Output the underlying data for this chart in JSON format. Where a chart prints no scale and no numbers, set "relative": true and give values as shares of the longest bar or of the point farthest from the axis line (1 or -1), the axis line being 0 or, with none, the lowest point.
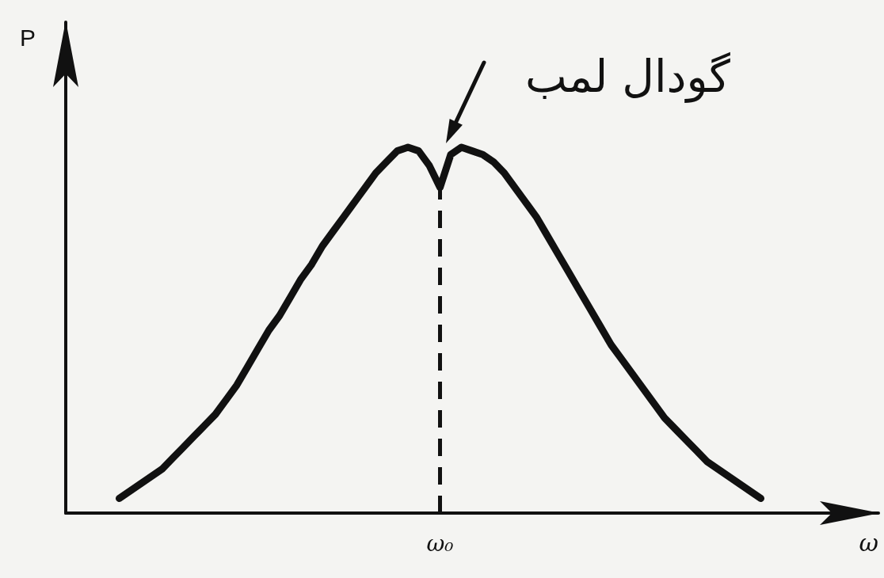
{
  "chart_data": {
    "type": "line",
    "relative": true,
    "xlabel": "ω",
    "ylabel": "P",
    "marker": "none",
    "grid": false,
    "color": "#111111",
    "categories": [
      null,
      null,
      null,
      null,
      null,
      null,
      null,
      null,
      null,
      null,
      null,
      null,
      null,
      null,
      null,
      null,
      null,
      null,
      null,
      null,
      null,
      null,
      null,
      null,
      null,
      null,
      null,
      null,
      null,
      null,
      null,
      null,
      null,
      null,
      null,
      null,
      null,
      null,
      null,
      null,
      null,
      null,
      null,
      null,
      null,
      null,
      null,
      null,
      null,
      null,
      null,
      null,
      null,
      null,
      null,
      null,
      null,
      null,
      null,
      null,
      null,
      null,
      null,
      null,
      null,
      null,
      null,
      null,
      null,
      null,
      null,
      null,
      null,
      null,
      null,
      null,
      null
    ],
    "values": [
      null,
      null,
      null,
      null,
      null,
      0.04,
      0.06,
      0.08,
      0.1,
      0.12,
      0.15,
      0.18,
      0.21,
      0.24,
      0.27,
      0.31,
      0.35,
      0.4,
      0.45,
      0.5,
      0.54,
      0.59,
      0.64,
      0.68,
      0.73,
      0.77,
      0.81,
      0.85,
      0.89,
      0.93,
      0.96,
      0.99,
      1,
      0.99,
      0.95,
      0.89,
      0.98,
      1,
      0.99,
      0.98,
      0.96,
      0.93,
      0.89,
      0.85,
      0.81,
      0.76,
      0.71,
      0.66,
      0.61,
      0.56,
      0.51,
      0.46,
      0.42,
      0.38,
      0.34,
      0.3,
      0.26,
      0.23,
      0.2,
      0.17,
      0.14,
      0.12,
      0.1,
      0.08,
      0.06,
      0.04,
      null,
      null,
      null,
      null,
      null,
      null,
      null,
      null,
      null,
      null,
      null
    ],
    "annotations": [
      "گودال لمب",
      "ω₀"
    ]
  }
}
